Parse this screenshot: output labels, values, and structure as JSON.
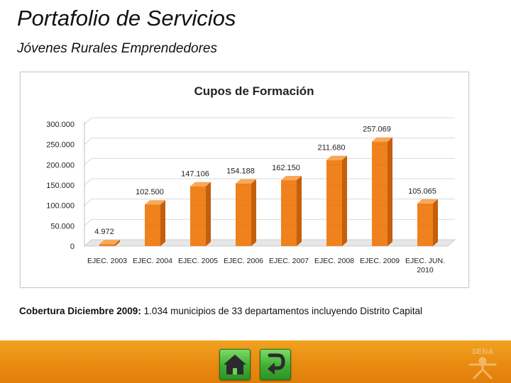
{
  "header": {
    "title": "Portafolio de Servicios",
    "subtitle": "Jóvenes Rurales Emprendedores"
  },
  "chart_data": {
    "type": "bar",
    "title": "Cupos de Formación",
    "categories": [
      "EJEC. 2003",
      "EJEC. 2004",
      "EJEC. 2005",
      "EJEC. 2006",
      "EJEC. 2007",
      "EJEC. 2008",
      "EJEC. 2009",
      "EJEC. JUN. 2010"
    ],
    "category_lines": [
      [
        "EJEC. 2003"
      ],
      [
        "EJEC. 2004"
      ],
      [
        "EJEC. 2005"
      ],
      [
        "EJEC. 2006"
      ],
      [
        "EJEC. 2007"
      ],
      [
        "EJEC. 2008"
      ],
      [
        "EJEC. 2009"
      ],
      [
        "EJEC. JUN.",
        "2010"
      ]
    ],
    "values": [
      4972,
      102500,
      147106,
      154188,
      162150,
      211680,
      257069,
      105065
    ],
    "data_labels": [
      "4.972",
      "102.500",
      "147.106",
      "154.188",
      "162.150",
      "211.680",
      "257.069",
      "105.065"
    ],
    "ylim": [
      0,
      300000
    ],
    "yticks": [
      0,
      50000,
      100000,
      150000,
      200000,
      250000,
      300000
    ],
    "ytick_labels": [
      "0",
      "50.000",
      "100.000",
      "150.000",
      "200.000",
      "250.000",
      "300.000"
    ],
    "xlabel": "",
    "ylabel": "",
    "grid": true,
    "legend": "none",
    "colors": {
      "bar_front": "#f0821e",
      "bar_side": "#c45f0c",
      "bar_top": "#f7a85a",
      "grid": "#d9d9d9",
      "floor": "#e6e6e6"
    }
  },
  "coverage": {
    "label": "Cobertura Diciembre 2009:",
    "text": " 1.034 municipios de 33 departamentos incluyendo Distrito Capital"
  },
  "footer": {
    "logo_text": "SENA",
    "colors": {
      "orange": "#e88a10",
      "green": "#3fae34"
    }
  }
}
